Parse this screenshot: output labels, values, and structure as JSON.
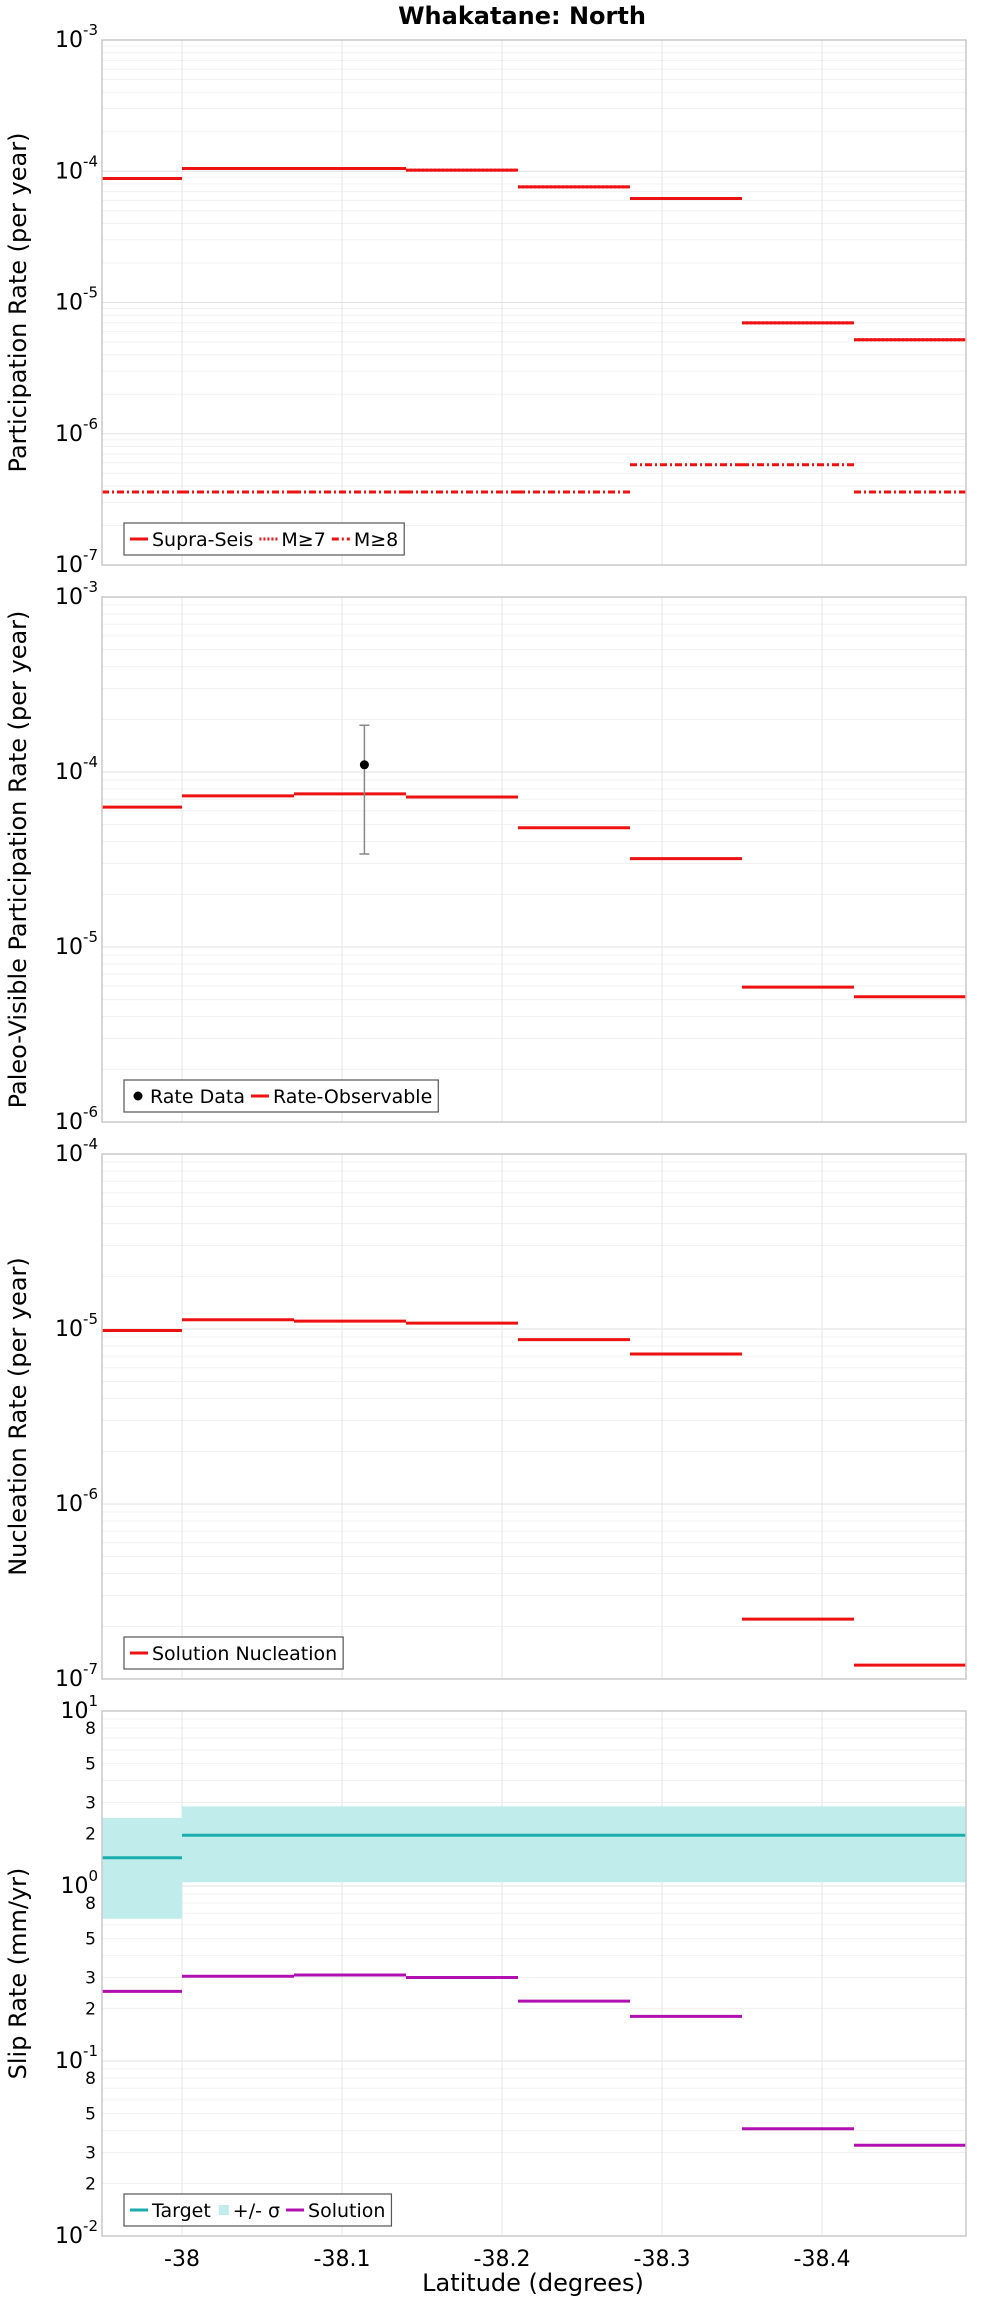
{
  "chart_data": {
    "title": "Whakatane: North",
    "xlabel": "Latitude (degrees)",
    "type": "line",
    "x_reversed": true,
    "xlim": [
      -37.95,
      -38.49
    ],
    "x_ticks": [
      -38,
      -38.1,
      -38.2,
      -38.3,
      -38.4
    ],
    "x_tick_labels": [
      "-38",
      "-38.1",
      "-38.2",
      "-38.3",
      "-38.4"
    ],
    "grid": true,
    "bins": [
      [
        -37.95,
        -38.0
      ],
      [
        -38.0,
        -38.07
      ],
      [
        -38.07,
        -38.14
      ],
      [
        -38.14,
        -38.21
      ],
      [
        -38.21,
        -38.28
      ],
      [
        -38.28,
        -38.35
      ],
      [
        -38.35,
        -38.42
      ],
      [
        -38.42,
        -38.49
      ]
    ],
    "panels": [
      {
        "id": "participation",
        "ylabel": "Participation Rate (per year)",
        "yscale": "log",
        "ylim": [
          1e-07,
          0.001
        ],
        "legend_position": "bottom-left",
        "series": [
          {
            "name": "Supra-Seis",
            "style": "solid",
            "color": "#ee1111",
            "values": [
              8.8e-05,
              0.000105,
              0.000105,
              0.000102,
              7.6e-05,
              6.2e-05,
              7e-06,
              5.2e-06
            ]
          },
          {
            "name": "M≥7",
            "style": "dotted",
            "color": "#ee1111",
            "values": [
              8.8e-05,
              0.000105,
              0.000105,
              0.000102,
              7.6e-05,
              6.2e-05,
              7e-06,
              5.2e-06
            ]
          },
          {
            "name": "M≥8",
            "style": "dashdot",
            "color": "#ee1111",
            "values": [
              3.6e-07,
              3.6e-07,
              3.6e-07,
              3.6e-07,
              3.6e-07,
              5.8e-07,
              5.8e-07,
              3.6e-07
            ]
          }
        ]
      },
      {
        "id": "paleo",
        "ylabel": "Paleo-Visible Participation Rate (per year)",
        "yscale": "log",
        "ylim": [
          1e-06,
          0.001
        ],
        "legend_position": "bottom-left",
        "points": [
          {
            "name": "Rate Data",
            "x": -38.114,
            "y": 0.00011,
            "ylow": 3.4e-05,
            "yhigh": 0.000185,
            "color": "#000000"
          }
        ],
        "series": [
          {
            "name": "Rate-Observable",
            "style": "solid",
            "color": "#ee1111",
            "values": [
              6.3e-05,
              7.3e-05,
              7.5e-05,
              7.2e-05,
              4.8e-05,
              3.2e-05,
              5.9e-06,
              5.2e-06
            ]
          }
        ]
      },
      {
        "id": "nucleation",
        "ylabel": "Nucleation Rate (per year)",
        "yscale": "log",
        "ylim": [
          1e-07,
          0.0001
        ],
        "legend_position": "bottom-left",
        "series": [
          {
            "name": "Solution Nucleation",
            "style": "solid",
            "color": "#ee1111",
            "values": [
              9.8e-06,
              1.13e-05,
              1.11e-05,
              1.08e-05,
              8.7e-06,
              7.2e-06,
              2.2e-07,
              1.2e-07
            ]
          }
        ]
      },
      {
        "id": "slip",
        "ylabel": "Slip Rate (mm/yr)",
        "yscale": "log",
        "ylim": [
          0.01,
          10
        ],
        "legend_position": "bottom-left",
        "minor_tick_values": [
          2,
          3,
          5,
          8
        ],
        "band": {
          "name": "+/- σ",
          "color": "#c0ecec",
          "lower": [
            0.65,
            1.05,
            1.05,
            1.05,
            1.05,
            1.05,
            1.05,
            1.05
          ],
          "upper": [
            2.45,
            2.85,
            2.85,
            2.85,
            2.85,
            2.85,
            2.85,
            2.85
          ]
        },
        "series": [
          {
            "name": "Target",
            "style": "solid",
            "color": "#1aadad",
            "values": [
              1.45,
              1.95,
              1.95,
              1.95,
              1.95,
              1.95,
              1.95,
              1.95
            ]
          },
          {
            "name": "Solution",
            "style": "solid",
            "color": "#b010b0",
            "values": [
              0.25,
              0.305,
              0.31,
              0.3,
              0.22,
              0.18,
              0.041,
              0.033
            ]
          }
        ]
      }
    ]
  }
}
